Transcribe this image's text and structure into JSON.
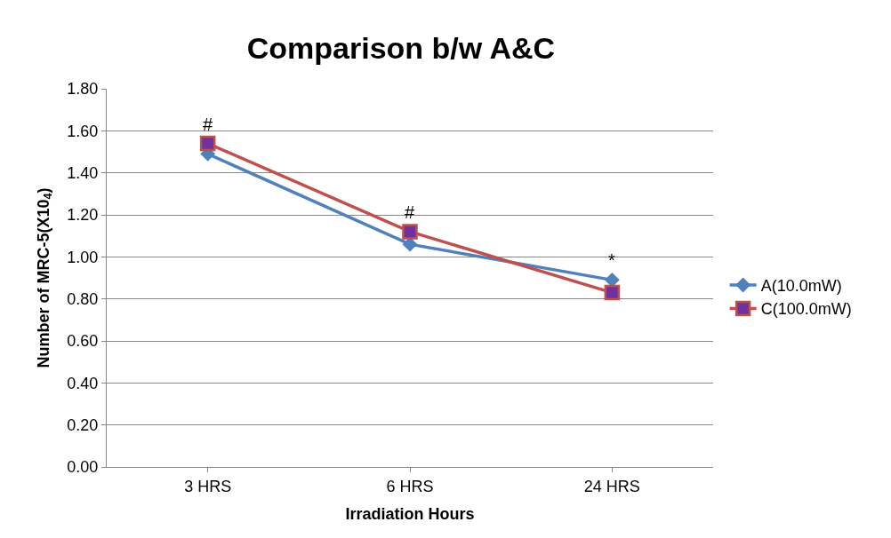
{
  "chart_data": {
    "type": "line",
    "title": "Comparison b/w A&C",
    "xlabel": "Irradiation Hours",
    "ylabel": "Number of MRC-5(X10$_{4}$)",
    "categories": [
      "3 HRS",
      "6 HRS",
      "24 HRS"
    ],
    "series": [
      {
        "name": "A(10.0mW)",
        "color": "#4f81bd",
        "values": [
          1.49,
          1.06,
          0.89
        ],
        "marker": "diamond"
      },
      {
        "name": "C(100.0mW)",
        "color": "#c0504d",
        "values": [
          1.54,
          1.12,
          0.83
        ],
        "marker": "square"
      }
    ],
    "ylim": [
      0,
      1.8
    ],
    "yticks": [
      {
        "value": 0,
        "label": "0.00"
      },
      {
        "value": 0.2,
        "label": "0.20"
      },
      {
        "value": 0.4,
        "label": "0.40"
      },
      {
        "value": 0.6,
        "label": "0.60"
      },
      {
        "value": 0.8,
        "label": "0.80"
      },
      {
        "value": 1.0,
        "label": "1.00"
      },
      {
        "value": 1.2,
        "label": "1.20"
      },
      {
        "value": 1.4,
        "label": "1.40"
      },
      {
        "value": 1.6,
        "label": "1.60"
      },
      {
        "value": 1.8,
        "label": "1.80"
      }
    ],
    "annotations": [
      {
        "text": "#",
        "x": "3 HRS",
        "y": 1.54
      },
      {
        "text": "#",
        "x": "6 HRS",
        "y": 1.12
      },
      {
        "text": "*",
        "x": "24 HRS",
        "y": 0.89
      }
    ],
    "grid": "y",
    "legend": "right",
    "line_style": "solid"
  }
}
